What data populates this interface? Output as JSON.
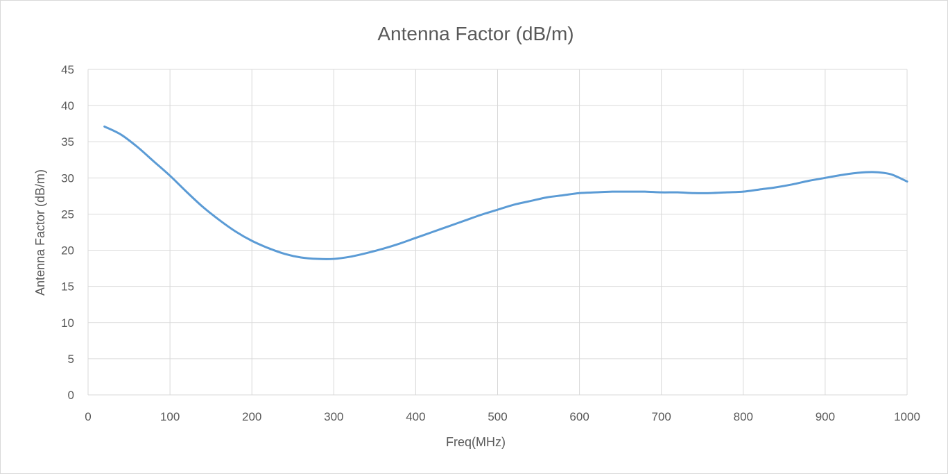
{
  "chart_data": {
    "type": "line",
    "title": "Antenna Factor (dB/m)",
    "xlabel": "Freq(MHz)",
    "ylabel": "Antenna Factor (dB/m)",
    "xlim": [
      0,
      1000
    ],
    "ylim": [
      0,
      45
    ],
    "x_ticks": [
      0,
      100,
      200,
      300,
      400,
      500,
      600,
      700,
      800,
      900,
      1000
    ],
    "y_ticks": [
      0,
      5,
      10,
      15,
      20,
      25,
      30,
      35,
      40,
      45
    ],
    "grid": true,
    "legend": "none",
    "series_color": "#5b9bd5",
    "series": [
      {
        "x": [
          20,
          40,
          60,
          80,
          100,
          120,
          140,
          160,
          180,
          200,
          220,
          240,
          260,
          280,
          300,
          320,
          340,
          360,
          380,
          400,
          420,
          440,
          460,
          480,
          500,
          520,
          540,
          560,
          580,
          600,
          620,
          640,
          660,
          680,
          700,
          720,
          740,
          760,
          780,
          800,
          820,
          840,
          860,
          880,
          900,
          920,
          940,
          960,
          980,
          1000
        ],
        "y": [
          37.1,
          36.0,
          34.3,
          32.3,
          30.3,
          28.1,
          26.0,
          24.2,
          22.6,
          21.3,
          20.3,
          19.5,
          19.0,
          18.8,
          18.8,
          19.1,
          19.6,
          20.2,
          20.9,
          21.7,
          22.5,
          23.3,
          24.1,
          24.9,
          25.6,
          26.3,
          26.8,
          27.3,
          27.6,
          27.9,
          28.0,
          28.1,
          28.1,
          28.1,
          28.0,
          28.0,
          27.9,
          27.9,
          28.0,
          28.1,
          28.4,
          28.7,
          29.1,
          29.6,
          30.0,
          30.4,
          30.7,
          30.8,
          30.5,
          29.5
        ]
      }
    ]
  }
}
